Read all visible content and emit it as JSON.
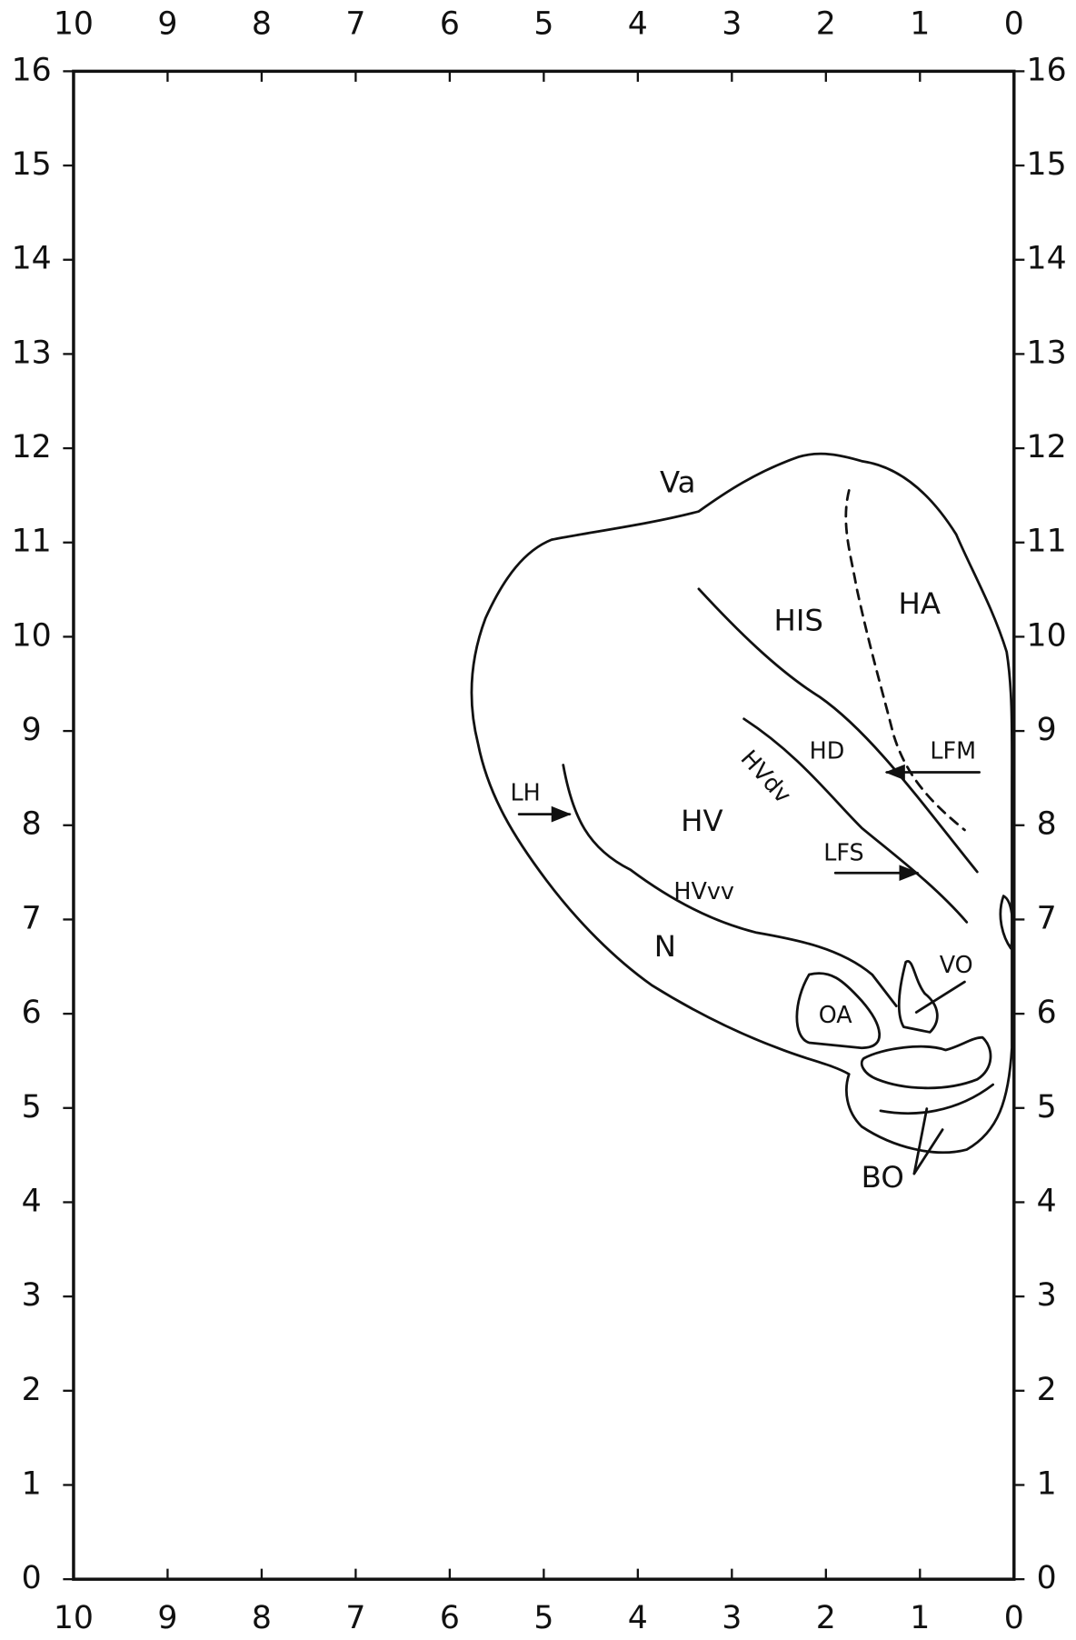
{
  "x_axis": {
    "ticks": [
      10,
      9,
      8,
      7,
      6,
      5,
      4,
      3,
      2,
      1,
      0
    ]
  },
  "y_axis": {
    "ticks": [
      16,
      15,
      14,
      13,
      12,
      11,
      10,
      9,
      8,
      7,
      6,
      5,
      4,
      3,
      2,
      1,
      0
    ]
  },
  "labels": [
    "Va",
    "HIS",
    "HA",
    "HD",
    "LFM",
    "HVdv",
    "HV",
    "LH",
    "LFS",
    "HVvv",
    "N",
    "VO",
    "OA",
    "BO"
  ]
}
